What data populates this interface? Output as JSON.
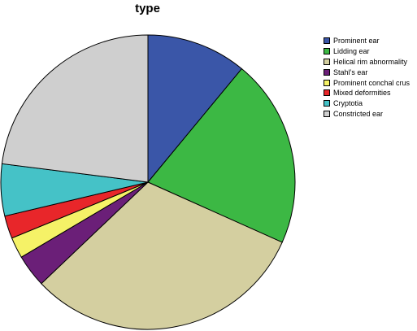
{
  "chart_data": {
    "type": "pie",
    "title": "type",
    "legend_position": "right",
    "slices": [
      {
        "label": "Prominent ear",
        "value": 11.0,
        "color": "#3a56a8"
      },
      {
        "label": "Lidding ear",
        "value": 20.7,
        "color": "#3cb844"
      },
      {
        "label": "Helical rim abnormality",
        "value": 31.2,
        "color": "#d4cfa0"
      },
      {
        "label": "Stahl’s ear",
        "value": 3.6,
        "color": "#6b1f78"
      },
      {
        "label": "Prominent conchal crus",
        "value": 2.3,
        "color": "#f5f267"
      },
      {
        "label": "Mixed deformities",
        "value": 2.5,
        "color": "#e8262a"
      },
      {
        "label": "Cryptotia",
        "value": 5.7,
        "color": "#45c2c7"
      },
      {
        "label": "Constricted ear",
        "value": 23.0,
        "color": "#cfcfcf"
      }
    ]
  }
}
